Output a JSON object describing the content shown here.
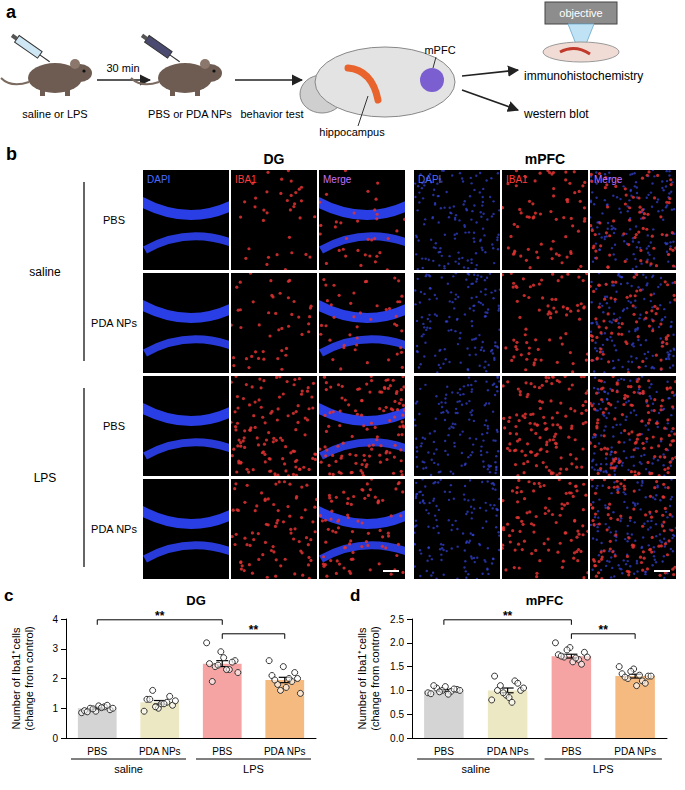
{
  "figure": {
    "a": {
      "label": "a",
      "treatment_1": "saline or LPS",
      "interval": "30 min",
      "treatment_2": "PBS or PDA NPs",
      "step": "behavior test",
      "regions": [
        "mPFC",
        "hippocampus"
      ],
      "microscope": "objective",
      "assays": [
        "immunohistochemistry",
        "western blot"
      ]
    },
    "b": {
      "label": "b",
      "regions": [
        "DG",
        "mPFC"
      ],
      "channels": [
        "DAPI",
        "IBA1",
        "Merge"
      ],
      "groups": [
        {
          "name": "saline",
          "rows": [
            "PBS",
            "PDA NPs"
          ]
        },
        {
          "name": "LPS",
          "rows": [
            "PBS",
            "PDA NPs"
          ]
        }
      ]
    }
  },
  "chart_data": [
    {
      "panel": "c",
      "type": "bar",
      "title": "DG",
      "y_label": [
        "Number of Iba1⁺cells",
        "(change from control)"
      ],
      "categories": [
        "PBS",
        "PDA NPs",
        "PBS",
        "PDA NPs"
      ],
      "groups": [
        "saline",
        "saline",
        "LPS",
        "LPS"
      ],
      "values": [
        1.0,
        1.2,
        2.5,
        1.95
      ],
      "errors": [
        0.03,
        0.06,
        0.1,
        0.09
      ],
      "points": [
        [
          0.85,
          0.9,
          0.95,
          1.0,
          1.05,
          0.92,
          1.08,
          1.0,
          0.98,
          1.1,
          0.88,
          1.02
        ],
        [
          0.9,
          1.0,
          1.1,
          1.6,
          1.2,
          1.3,
          1.15,
          1.25,
          1.05,
          1.4,
          1.3,
          1.15
        ],
        [
          3.2,
          2.9,
          2.6,
          2.4,
          2.3,
          2.5,
          2.7,
          2.2,
          2.45,
          2.55,
          1.9,
          2.3
        ],
        [
          2.6,
          2.4,
          2.0,
          1.8,
          1.9,
          2.1,
          1.7,
          1.5,
          1.6,
          2.2,
          1.95,
          2.0
        ]
      ],
      "colors": [
        "#d4d4d4",
        "#ece8c4",
        "#f5a3a3",
        "#f5ba80"
      ],
      "significance": [
        {
          "between": [
            0,
            2
          ],
          "label": "**"
        },
        {
          "between": [
            2,
            3
          ],
          "label": "**"
        }
      ],
      "ylim": [
        0,
        4
      ],
      "yticks": [
        0,
        1,
        2,
        3,
        4
      ],
      "grid": false
    },
    {
      "panel": "d",
      "type": "bar",
      "title": "mPFC",
      "y_label": [
        "Number of Iba1⁺cells",
        "(change from control)"
      ],
      "categories": [
        "PBS",
        "PDA NPs",
        "PBS",
        "PDA NPs"
      ],
      "groups": [
        "saline",
        "saline",
        "LPS",
        "LPS"
      ],
      "values": [
        1.0,
        1.0,
        1.72,
        1.3
      ],
      "errors": [
        0.02,
        0.05,
        0.04,
        0.04
      ],
      "points": [
        [
          0.95,
          1.0,
          1.02,
          1.05,
          0.98,
          0.93,
          1.08,
          1.0,
          0.97,
          1.03,
          1.1,
          0.92
        ],
        [
          0.8,
          0.9,
          1.0,
          1.1,
          1.2,
          1.3,
          0.85,
          1.05,
          0.95,
          1.15,
          1.0,
          0.75
        ],
        [
          2.0,
          1.9,
          1.8,
          1.7,
          1.65,
          1.75,
          1.6,
          1.7,
          1.85,
          1.55,
          1.72,
          1.68
        ],
        [
          1.5,
          1.45,
          1.3,
          1.25,
          1.2,
          1.35,
          1.1,
          1.3,
          1.4,
          1.15,
          1.28,
          1.32
        ]
      ],
      "colors": [
        "#d4d4d4",
        "#ece8c4",
        "#f5a3a3",
        "#f5ba80"
      ],
      "significance": [
        {
          "between": [
            0,
            2
          ],
          "label": "**"
        },
        {
          "between": [
            2,
            3
          ],
          "label": "**"
        }
      ],
      "ylim": [
        0,
        2.5
      ],
      "yticks": [
        {
          "value": 0,
          "label": "0.0"
        },
        {
          "value": 0.5,
          "label": "0.5"
        },
        {
          "value": 1,
          "label": "1.0"
        },
        {
          "value": 1.5,
          "label": "1.5"
        },
        {
          "value": 2,
          "label": "2.0"
        },
        {
          "value": 2.5,
          "label": "2.5"
        }
      ],
      "grid": false
    }
  ]
}
